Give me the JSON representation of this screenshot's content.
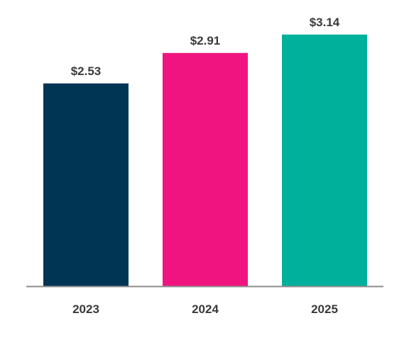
{
  "chart_data": {
    "type": "bar",
    "categories": [
      "2023",
      "2024",
      "2025"
    ],
    "values": [
      2.53,
      2.91,
      3.14
    ],
    "data_labels": [
      "$2.53",
      "$2.91",
      "$3.14"
    ],
    "colors": [
      "#003554",
      "#f01480",
      "#00b09b"
    ],
    "axis_color": "#8c8c8c",
    "title": "",
    "xlabel": "",
    "ylabel": "",
    "ylim": [
      0,
      3.35
    ],
    "grid": false,
    "legend": "none"
  }
}
